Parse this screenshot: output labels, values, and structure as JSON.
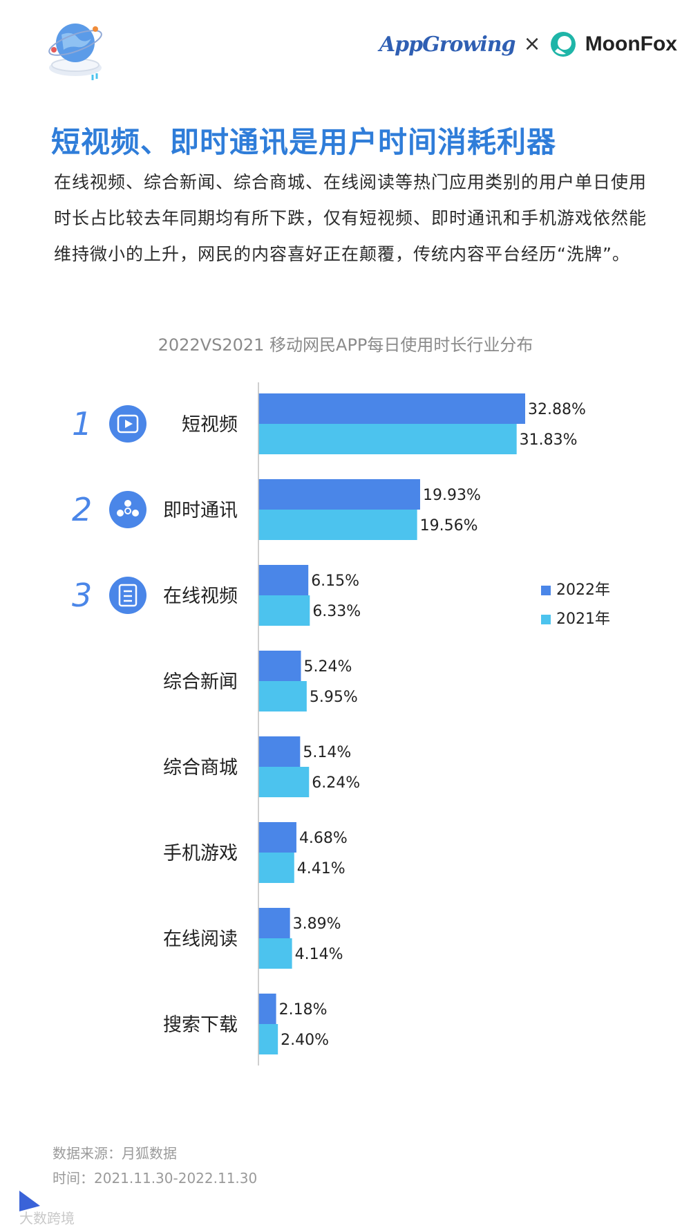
{
  "header": {
    "brand_left": "AppGrowing",
    "brand_sep": "×",
    "brand_right": "MoonFox",
    "colors": {
      "appgrowing": "#2f5fb3",
      "moonfox_icon": "#1fb5a8"
    }
  },
  "page": {
    "title": "短视频、即时通讯是用户时间消耗利器",
    "intro": "在线视频、综合新闻、综合商城、在线阅读等热门应用类别的用户单日使用时长占比较去年同期均有所下跌，仅有短视频、即时通讯和手机游戏依然能维持微小的上升，网民的内容喜好正在颠覆，传统内容平台经历“洗牌”。"
  },
  "chart_data": {
    "type": "bar",
    "orientation": "horizontal",
    "title": "2022VS2021 移动网民APP每日使用时长行业分布",
    "categories": [
      "短视频",
      "即时通讯",
      "在线视频",
      "综合新闻",
      "综合商城",
      "手机游戏",
      "在线阅读",
      "搜索下载"
    ],
    "series": [
      {
        "name": "2022年",
        "values": [
          32.88,
          19.93,
          6.15,
          5.24,
          5.14,
          4.68,
          3.89,
          2.18
        ],
        "labels": [
          "32.88%",
          "19.93%",
          "6.15%",
          "5.24%",
          "5.14%",
          "4.68%",
          "3.89%",
          "2.18%"
        ],
        "color": "#4a86e8"
      },
      {
        "name": "2021年",
        "values": [
          31.83,
          19.56,
          6.33,
          5.95,
          6.24,
          4.41,
          4.14,
          2.4
        ],
        "labels": [
          "31.83%",
          "19.56%",
          "6.33%",
          "5.95%",
          "6.24%",
          "4.41%",
          "4.14%",
          "2.40%"
        ],
        "color": "#4cc3ee"
      }
    ],
    "ranks": [
      {
        "number": "1",
        "icon": "video-play-icon"
      },
      {
        "number": "2",
        "icon": "people-chat-icon"
      },
      {
        "number": "3",
        "icon": "document-list-icon"
      }
    ],
    "rank_color": "#4a86e8",
    "legend_position": "right",
    "grid": false
  },
  "footer": {
    "source": "数据来源：月狐数据",
    "time": "时间：2021.11.30-2022.11.30",
    "watermark": "大数跨境"
  }
}
